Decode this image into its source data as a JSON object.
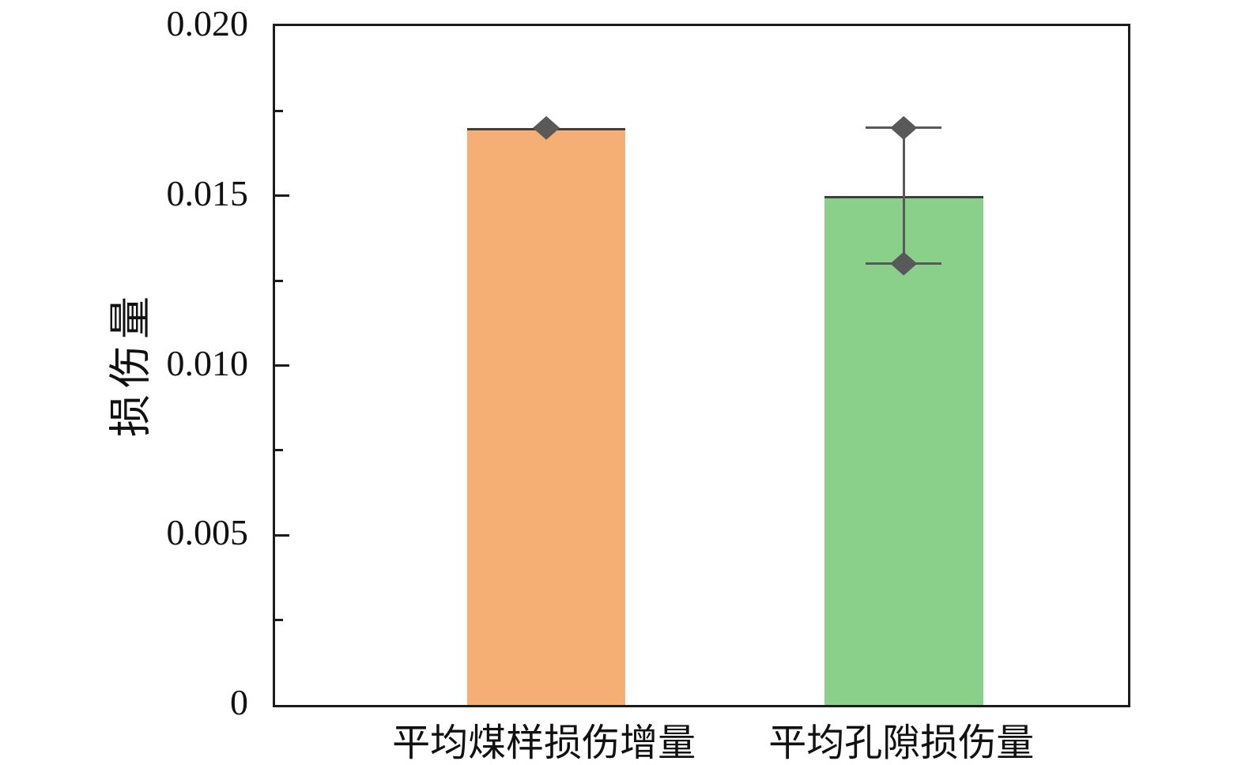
{
  "figure": {
    "background": "#ffffff"
  },
  "chart_data": {
    "type": "bar",
    "title": "",
    "xlabel": "",
    "ylabel": "损伤量",
    "categories": [
      "平均煤样损伤增量",
      "平均孔隙损伤量"
    ],
    "values": [
      0.017,
      0.015
    ],
    "bar_colors": [
      "#F5AE73",
      "#8BD08A"
    ],
    "bar_edge_color": "#3f3f3f",
    "markers": [
      {
        "bar": 0,
        "values": [
          0.017
        ],
        "caps": false,
        "connect": false
      },
      {
        "bar": 1,
        "values": [
          0.017,
          0.013
        ],
        "caps": true,
        "connect": true
      }
    ],
    "marker_color": "#595959",
    "marker_shape": "diamond",
    "ylim": [
      0,
      0.02
    ],
    "yticks": [
      0,
      0.005,
      0.01,
      0.015,
      0.02
    ],
    "ytick_labels": [
      "0",
      "0.005",
      "0.010",
      "0.015",
      "0.020"
    ],
    "minor_tick_step": 0.0025,
    "grid": false,
    "legend": "none",
    "axis_color": "#1c1c1c",
    "bar_center_fractions": [
      0.318,
      0.737
    ],
    "bar_width_fraction": 0.186,
    "cap_half_width": 48
  }
}
